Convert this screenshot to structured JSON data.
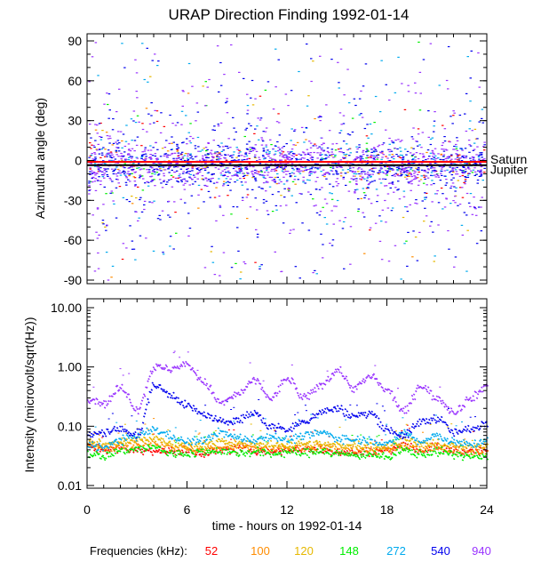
{
  "title": "URAP Direction Finding  1992-01-14",
  "chart_data": [
    {
      "type": "scatter",
      "name": "azimuth-panel",
      "title": "URAP Direction Finding  1992-01-14",
      "xlabel": "",
      "ylabel": "Azimuthal angle (deg)",
      "xlim": [
        0,
        24
      ],
      "ylim": [
        -90,
        90
      ],
      "x_ticks": [
        0,
        6,
        12,
        18,
        24
      ],
      "y_ticks": [
        {
          "value": 90,
          "label": "90"
        },
        {
          "value": 60,
          "label": "60"
        },
        {
          "value": 30,
          "label": "30"
        },
        {
          "value": 0,
          "label": "0"
        },
        {
          "value": -30,
          "label": "-30"
        },
        {
          "value": -60,
          "label": "-60"
        },
        {
          "value": -90,
          "label": "-90"
        }
      ],
      "reference_lines": [
        {
          "label": "Saturn",
          "value": -1,
          "color": "#ff0000"
        },
        {
          "label": "Jupiter",
          "value": -3.5,
          "color": "#000000"
        }
      ],
      "scatter_description": "Dense short dash marks for each frequency; concentrated near 0 deg (most within -20..+20), sparse spread to +-90",
      "series_density": [
        {
          "frequency_khz": "52",
          "points": 120
        },
        {
          "frequency_khz": "100",
          "points": 60
        },
        {
          "frequency_khz": "120",
          "points": 60
        },
        {
          "frequency_khz": "148",
          "points": 80
        },
        {
          "frequency_khz": "272",
          "points": 320
        },
        {
          "frequency_khz": "540",
          "points": 900
        },
        {
          "frequency_khz": "940",
          "points": 1100
        }
      ]
    },
    {
      "type": "line",
      "name": "intensity-panel",
      "xlabel": "time - hours on 1992-01-14",
      "ylabel": "Intensity (microvolt/sqrt(Hz))",
      "xlim": [
        0,
        24
      ],
      "ylim": [
        0.01,
        10.0
      ],
      "yscale": "log",
      "x_ticks": [
        {
          "value": 0,
          "label": "0"
        },
        {
          "value": 6,
          "label": "6"
        },
        {
          "value": 12,
          "label": "12"
        },
        {
          "value": 18,
          "label": "18"
        },
        {
          "value": 24,
          "label": "24"
        }
      ],
      "y_ticks": [
        {
          "value": 10.0,
          "label": "10.00"
        },
        {
          "value": 1.0,
          "label": "1.00"
        },
        {
          "value": 0.1,
          "label": "0.10"
        },
        {
          "value": 0.01,
          "label": "0.01"
        }
      ],
      "x": [
        0,
        1,
        2,
        3,
        4,
        5,
        6,
        7,
        8,
        9,
        10,
        11,
        12,
        13,
        14,
        15,
        16,
        17,
        18,
        19,
        20,
        21,
        22,
        23,
        24
      ],
      "series": [
        {
          "name": "52",
          "color": "#ff0000",
          "values": [
            0.045,
            0.04,
            0.042,
            0.04,
            0.04,
            0.038,
            0.04,
            0.036,
            0.04,
            0.042,
            0.04,
            0.038,
            0.04,
            0.042,
            0.04,
            0.038,
            0.036,
            0.038,
            0.04,
            0.05,
            0.04,
            0.045,
            0.04,
            0.038,
            0.04
          ]
        },
        {
          "name": "100",
          "color": "#ff8c00",
          "values": [
            0.05,
            0.045,
            0.048,
            0.05,
            0.055,
            0.045,
            0.042,
            0.04,
            0.045,
            0.048,
            0.044,
            0.04,
            0.042,
            0.044,
            0.045,
            0.04,
            0.042,
            0.04,
            0.04,
            0.045,
            0.042,
            0.045,
            0.04,
            0.038,
            0.04
          ]
        },
        {
          "name": "120",
          "color": "#e6b800",
          "values": [
            0.055,
            0.05,
            0.055,
            0.06,
            0.065,
            0.05,
            0.048,
            0.05,
            0.055,
            0.05,
            0.05,
            0.048,
            0.05,
            0.052,
            0.05,
            0.048,
            0.05,
            0.048,
            0.045,
            0.06,
            0.05,
            0.05,
            0.048,
            0.045,
            0.05
          ]
        },
        {
          "name": "148",
          "color": "#00ee00",
          "values": [
            0.035,
            0.032,
            0.04,
            0.042,
            0.045,
            0.035,
            0.035,
            0.038,
            0.04,
            0.035,
            0.038,
            0.035,
            0.037,
            0.036,
            0.04,
            0.035,
            0.033,
            0.035,
            0.03,
            0.04,
            0.035,
            0.038,
            0.034,
            0.032,
            0.03
          ]
        },
        {
          "name": "272",
          "color": "#00aaee",
          "values": [
            0.05,
            0.045,
            0.06,
            0.07,
            0.09,
            0.07,
            0.055,
            0.06,
            0.08,
            0.065,
            0.06,
            0.07,
            0.06,
            0.07,
            0.08,
            0.065,
            0.06,
            0.06,
            0.05,
            0.08,
            0.055,
            0.07,
            0.055,
            0.05,
            0.06
          ]
        },
        {
          "name": "540",
          "color": "#0000ee",
          "values": [
            0.07,
            0.08,
            0.09,
            0.075,
            0.5,
            0.35,
            0.22,
            0.16,
            0.12,
            0.13,
            0.17,
            0.1,
            0.09,
            0.12,
            0.18,
            0.2,
            0.15,
            0.17,
            0.09,
            0.07,
            0.12,
            0.14,
            0.08,
            0.09,
            0.12
          ]
        },
        {
          "name": "940",
          "color": "#9933ff",
          "values": [
            0.3,
            0.25,
            0.45,
            0.2,
            1.0,
            0.95,
            1.1,
            0.55,
            0.25,
            0.35,
            0.6,
            0.3,
            0.65,
            0.3,
            0.5,
            0.9,
            0.45,
            0.7,
            0.4,
            0.18,
            0.5,
            0.3,
            0.18,
            0.3,
            0.5
          ]
        }
      ]
    }
  ],
  "legend": {
    "label": "Frequencies (kHz):",
    "items": [
      {
        "label": "52",
        "color": "#ff0000"
      },
      {
        "label": "100",
        "color": "#ff8c00"
      },
      {
        "label": "120",
        "color": "#e6b800"
      },
      {
        "label": "148",
        "color": "#00ee00"
      },
      {
        "label": "272",
        "color": "#00aaee"
      },
      {
        "label": "540",
        "color": "#0000ee"
      },
      {
        "label": "940",
        "color": "#9933ff"
      }
    ]
  }
}
